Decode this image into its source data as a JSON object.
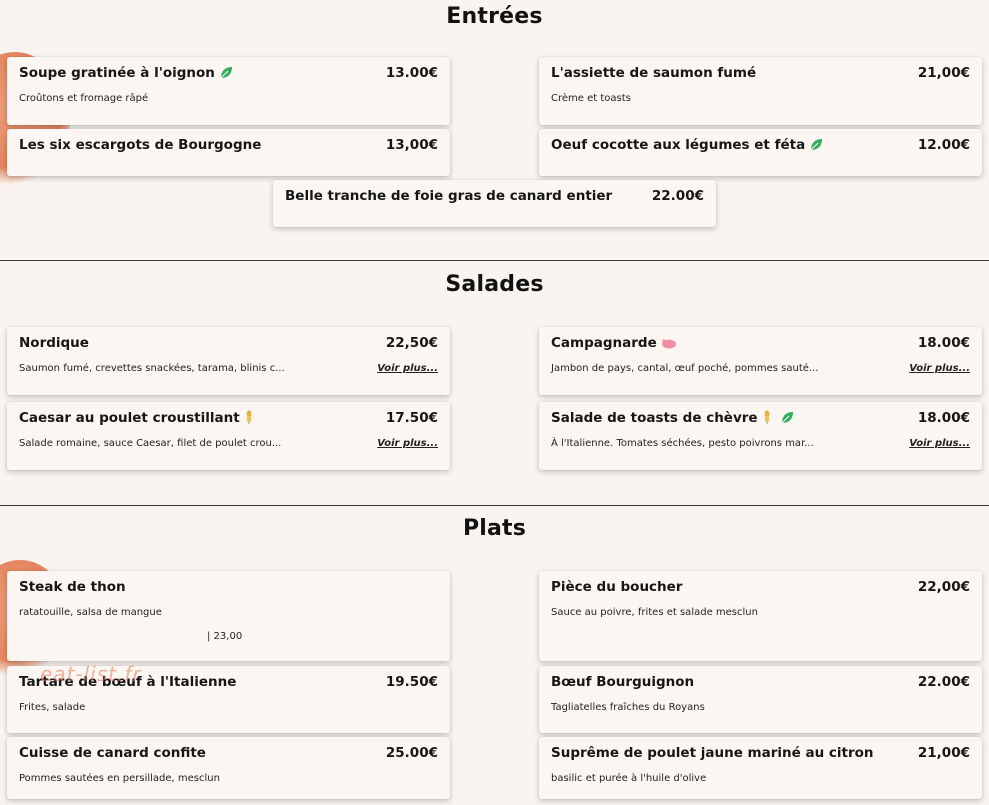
{
  "sections": {
    "entrees": {
      "title": "Entrées",
      "items": [
        {
          "name": "Soupe gratinée à l'oignon",
          "price": "13.00€",
          "desc": "Croûtons et fromage râpé"
        },
        {
          "name": "L'assiette de saumon fumé",
          "price": "21,00€",
          "desc": "Crème et toasts"
        },
        {
          "name": "Les six escargots de Bourgogne",
          "price": "13,00€"
        },
        {
          "name": "Oeuf cocotte aux légumes et féta",
          "price": "12.00€"
        },
        {
          "name": "Belle tranche de foie gras de canard entier",
          "price": "22.00€"
        }
      ]
    },
    "salades": {
      "title": "Salades",
      "items": [
        {
          "name": "Nordique",
          "price": "22,50€",
          "desc": "Saumon fumé, crevettes snackées, tarama, blinis c...",
          "more": "Voir plus..."
        },
        {
          "name": "Campagnarde",
          "price": "18.00€",
          "desc": "Jambon de pays, cantal, œuf poché, pommes sauté...",
          "more": "Voir plus..."
        },
        {
          "name": "Caesar au poulet croustillant",
          "price": "17.50€",
          "desc": "Salade romaine, sauce Caesar, filet de poulet crou...",
          "more": "Voir plus..."
        },
        {
          "name": "Salade de toasts de chèvre",
          "price": "18.00€",
          "desc": "À l'Italienne. Tomates séchées, pesto poivrons mar...",
          "more": "Voir plus..."
        }
      ]
    },
    "plats": {
      "title": "Plats",
      "items": [
        {
          "name": "Steak de thon",
          "desc": "ratatouille, salsa de mangue",
          "extra": "| 23,00"
        },
        {
          "name": "Pièce du boucher",
          "price": "22,00€",
          "desc": "Sauce au poivre, frites et salade mesclun"
        },
        {
          "name": "Tartare de bœuf à l'Italienne",
          "price": "19.50€",
          "desc": "Frites, salade"
        },
        {
          "name": "Bœuf Bourguignon",
          "price": "22.00€",
          "desc": "Tagliatelles fraîches du Royans"
        },
        {
          "name": "Cuisse de canard confite",
          "price": "25.00€",
          "desc": "Pommes sautées en persillade, mesclun"
        },
        {
          "name": "Suprême de poulet jaune mariné au citron",
          "price": "21,00€",
          "desc": "basilic et purée à l'huile d'olive"
        }
      ]
    }
  },
  "watermark": "eat-list.fr",
  "icons": {
    "vegetarian": "leaf-icon",
    "pork": "pig-icon",
    "gluten": "wheat-icon"
  },
  "colors": {
    "background": "#f9f4ef",
    "leaf": "#2fae5b",
    "pig": "#f08fa1",
    "wheat": "#e3b23c",
    "accent_blob": "#e3784f"
  }
}
